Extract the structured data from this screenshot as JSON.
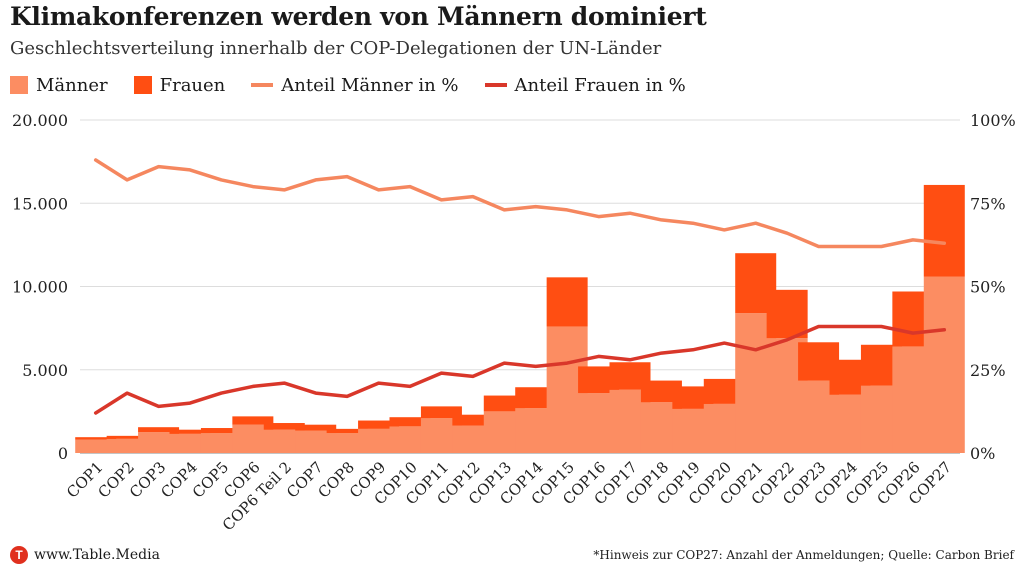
{
  "header": {
    "title": "Klimakonferenzen werden von Männern dominiert",
    "subtitle": "Geschlechtsverteilung innerhalb der COP-Delegationen der UN-Länder"
  },
  "legend": {
    "men": "Männer",
    "women": "Frauen",
    "men_share": "Anteil Männer in %",
    "women_share": "Anteil Frauen in %"
  },
  "colors": {
    "men": "#fc8d62",
    "women": "#ff4e12",
    "men_share": "#f5875f",
    "women_share": "#d9372a",
    "grid": "#dddddd"
  },
  "chart_data": {
    "type": "bar",
    "stacked": true,
    "categories": [
      "COP1",
      "COP2",
      "COP3",
      "COP4",
      "COP5",
      "COP6",
      "COP6 Teil 2",
      "COP7",
      "COP8",
      "COP9",
      "COP10",
      "COP11",
      "COP12",
      "COP13",
      "COP14",
      "COP15",
      "COP16",
      "COP17",
      "COP18",
      "COP19",
      "COP20",
      "COP21",
      "COP22",
      "COP23",
      "COP24",
      "COP25",
      "COP26",
      "COP27"
    ],
    "series": [
      {
        "name": "Männer",
        "axis": "left",
        "values": [
          800,
          850,
          1250,
          1150,
          1200,
          1700,
          1400,
          1350,
          1200,
          1450,
          1600,
          2100,
          1650,
          2500,
          2700,
          7600,
          3600,
          3800,
          3050,
          2650,
          2950,
          8400,
          6900,
          4350,
          3500,
          4050,
          6400,
          10600
        ]
      },
      {
        "name": "Frauen",
        "axis": "left",
        "values": [
          150,
          180,
          300,
          250,
          300,
          500,
          400,
          350,
          250,
          500,
          550,
          700,
          650,
          950,
          1250,
          2950,
          1600,
          1650,
          1300,
          1350,
          1500,
          3600,
          2900,
          2300,
          2100,
          2450,
          3300,
          5500
        ]
      },
      {
        "name": "Anteil Männer in %",
        "axis": "right",
        "type": "line",
        "values": [
          88,
          82,
          86,
          85,
          82,
          80,
          79,
          82,
          83,
          79,
          80,
          76,
          77,
          73,
          74,
          73,
          71,
          72,
          70,
          69,
          67,
          69,
          66,
          62,
          62,
          62,
          64,
          63
        ]
      },
      {
        "name": "Anteil Frauen in %",
        "axis": "right",
        "type": "line",
        "values": [
          12,
          18,
          14,
          15,
          18,
          20,
          21,
          18,
          17,
          21,
          20,
          24,
          23,
          27,
          26,
          27,
          29,
          28,
          30,
          31,
          33,
          31,
          34,
          38,
          38,
          38,
          36,
          37
        ]
      }
    ],
    "ylim": [
      0,
      20000
    ],
    "y2lim": [
      0,
      100
    ],
    "yticks": [
      "0",
      "5.000",
      "10.000",
      "15.000",
      "20.000"
    ],
    "y2ticks": [
      "0%",
      "25%",
      "50%",
      "75%",
      "100%"
    ],
    "grid": true,
    "legend_position": "top-left"
  },
  "footer": {
    "logo": "T",
    "source_site": "www.Table.Media",
    "note": "*Hinweis zur COP27: Anzahl der Anmeldungen; Quelle: Carbon Brief"
  }
}
